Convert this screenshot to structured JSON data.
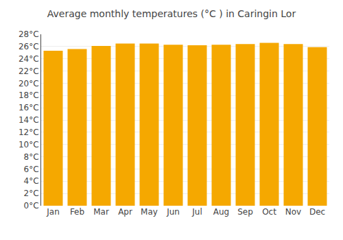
{
  "chart_data": {
    "type": "bar",
    "title": "Average monthly temperatures (°C ) in Caringin Lor",
    "categories": [
      "Jan",
      "Feb",
      "Mar",
      "Apr",
      "May",
      "Jun",
      "Jul",
      "Aug",
      "Sep",
      "Oct",
      "Nov",
      "Dec"
    ],
    "values": [
      25.3,
      25.6,
      26.1,
      26.5,
      26.5,
      26.3,
      26.2,
      26.3,
      26.4,
      26.6,
      26.4,
      25.9
    ],
    "color": "#F5A800",
    "ylim": [
      0,
      28
    ],
    "yticks": [
      {
        "value": 0,
        "label": "0°C"
      },
      {
        "value": 2,
        "label": "2°C"
      },
      {
        "value": 4,
        "label": "4°C"
      },
      {
        "value": 6,
        "label": "6°C"
      },
      {
        "value": 8,
        "label": "8°C"
      },
      {
        "value": 10,
        "label": "10°C"
      },
      {
        "value": 12,
        "label": "12°C"
      },
      {
        "value": 14,
        "label": "14°C"
      },
      {
        "value": 16,
        "label": "16°C"
      },
      {
        "value": 18,
        "label": "18°C"
      },
      {
        "value": 20,
        "label": "20°C"
      },
      {
        "value": 22,
        "label": "22°C"
      },
      {
        "value": 24,
        "label": "24°C"
      },
      {
        "value": 26,
        "label": "26°C"
      },
      {
        "value": 28,
        "label": "28°C"
      }
    ],
    "grid": true
  }
}
